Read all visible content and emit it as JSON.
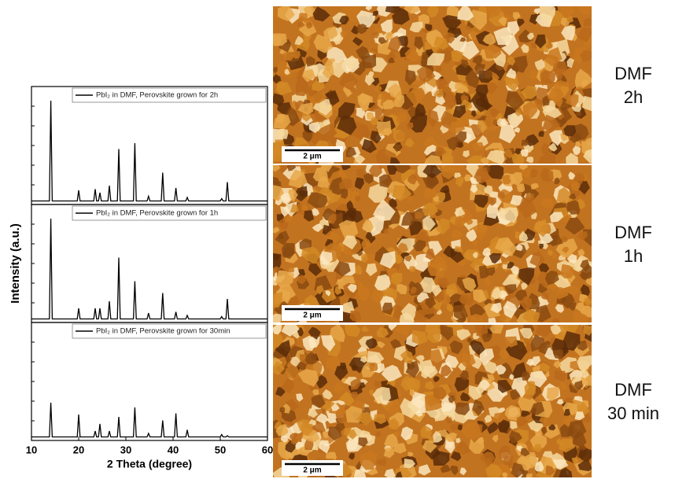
{
  "chart_data": [
    {
      "type": "line",
      "series": [
        {
          "name": "PbI₂ in DMF, Perovskite grown for 2h",
          "color": "#000000",
          "values": [
            3,
            3,
            88,
            3,
            3,
            12,
            3,
            3,
            13,
            3,
            3,
            10,
            3,
            3,
            16,
            3,
            3,
            47,
            3,
            3,
            52,
            3,
            3,
            7,
            3,
            3,
            27,
            3,
            3,
            14,
            3,
            3,
            6,
            3,
            3,
            5,
            3,
            3,
            19,
            3,
            3
          ]
        }
      ],
      "x": [
        10,
        13.8,
        14.1,
        14.4,
        19.7,
        20,
        20.3,
        23.2,
        23.5,
        23.8,
        24.2,
        24.5,
        24.8,
        26.2,
        26.5,
        26.8,
        28.2,
        28.5,
        28.8,
        31.6,
        31.9,
        32.2,
        34.5,
        34.8,
        35.1,
        37.5,
        37.8,
        38.1,
        40.3,
        40.6,
        40.9,
        42.7,
        43,
        43.3,
        50,
        50.3,
        50.6,
        51.2,
        51.5,
        51.8,
        60
      ],
      "xlim": [
        10,
        60
      ],
      "ylim": [
        0,
        100
      ]
    },
    {
      "type": "line",
      "series": [
        {
          "name": "PbI₂ in DMF, Perovskite grown for 1h",
          "color": "#000000",
          "values": [
            3,
            3,
            88,
            3,
            3,
            12,
            3,
            3,
            12,
            3,
            3,
            12,
            3,
            3,
            18,
            3,
            3,
            55,
            3,
            3,
            35,
            3,
            3,
            8,
            3,
            3,
            25,
            3,
            3,
            9,
            3,
            3,
            6,
            3,
            3,
            5,
            3,
            3,
            20,
            3,
            3
          ]
        }
      ],
      "x": [
        10,
        13.8,
        14.1,
        14.4,
        19.7,
        20,
        20.3,
        23.2,
        23.5,
        23.8,
        24.2,
        24.5,
        24.8,
        26.2,
        26.5,
        26.8,
        28.2,
        28.5,
        28.8,
        31.6,
        31.9,
        32.2,
        34.5,
        34.8,
        35.1,
        37.5,
        37.8,
        38.1,
        40.3,
        40.6,
        40.9,
        42.7,
        43,
        43.3,
        50,
        50.3,
        50.6,
        51.2,
        51.5,
        51.8,
        60
      ],
      "xlim": [
        10,
        60
      ],
      "ylim": [
        0,
        100
      ]
    },
    {
      "type": "line",
      "series": [
        {
          "name": "PbI₂ in DMF, Perovskite grown for 30min",
          "color": "#000000",
          "values": [
            3,
            3,
            32,
            3,
            3,
            22,
            3,
            3,
            8,
            3,
            3,
            14,
            3,
            3,
            8,
            3,
            3,
            20,
            3,
            3,
            28,
            3,
            3,
            6,
            3,
            3,
            17,
            3,
            3,
            23,
            3,
            3,
            9,
            3,
            3,
            5,
            3,
            3,
            4,
            3,
            3
          ]
        }
      ],
      "x": [
        10,
        13.8,
        14.1,
        14.4,
        19.7,
        20,
        20.3,
        23.2,
        23.5,
        23.8,
        24.2,
        24.5,
        24.8,
        26.2,
        26.5,
        26.8,
        28.2,
        28.5,
        28.8,
        31.6,
        31.9,
        32.2,
        34.5,
        34.8,
        35.1,
        37.5,
        37.8,
        38.1,
        40.3,
        40.6,
        40.9,
        42.7,
        43,
        43.3,
        50,
        50.3,
        50.6,
        51.2,
        51.5,
        51.8,
        60
      ],
      "xlim": [
        10,
        60
      ],
      "ylim": [
        0,
        100
      ],
      "xticks": [
        10,
        20,
        30,
        40,
        50,
        60
      ],
      "x_label": "2 Theta (degree)"
    }
  ],
  "y_label": "Intensity (a.u.)",
  "afm_panels": [
    {
      "scale_bar": "2 μm",
      "label": [
        "DMF",
        "2h"
      ]
    },
    {
      "scale_bar": "2 μm",
      "label": [
        "DMF",
        "1h"
      ]
    },
    {
      "scale_bar": "2 μm",
      "label": [
        "DMF",
        "30 min"
      ]
    }
  ]
}
